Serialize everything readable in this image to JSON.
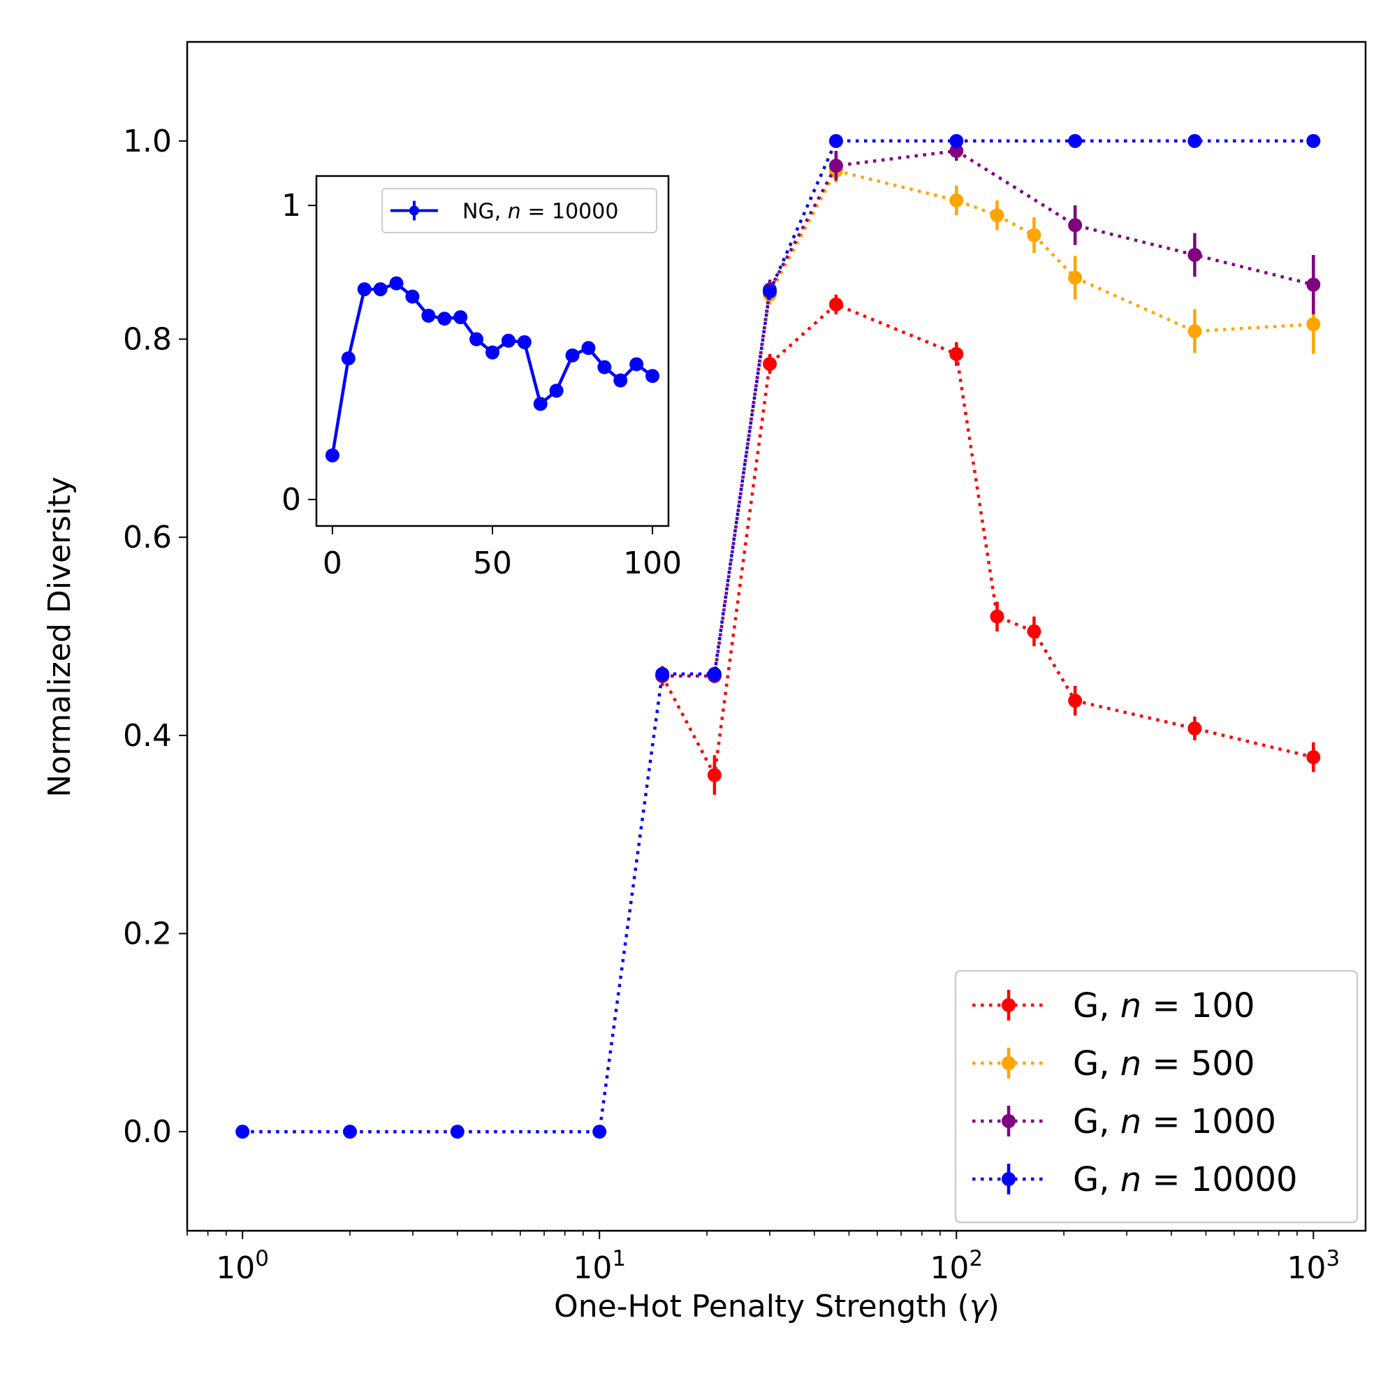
{
  "chart_data": [
    {
      "type": "line",
      "role": "main",
      "xscale": "log",
      "xlabel": "One-Hot Penalty Strength (γ)",
      "ylabel": "Normalized Diversity",
      "xlim": [
        0.7,
        1400
      ],
      "ylim": [
        -0.1,
        1.1
      ],
      "yticks": [
        0.0,
        0.2,
        0.4,
        0.6,
        0.8,
        1.0
      ],
      "ytick_labels": [
        "0.0",
        "0.2",
        "0.4",
        "0.6",
        "0.8",
        "1.0"
      ],
      "xticks": [
        1,
        10,
        100,
        1000
      ],
      "xtick_labels": [
        {
          "base": "10",
          "exp": "0"
        },
        {
          "base": "10",
          "exp": "1"
        },
        {
          "base": "10",
          "exp": "2"
        },
        {
          "base": "10",
          "exp": "3"
        }
      ],
      "legend_location": "lower-right",
      "series": [
        {
          "name": "G, n = 100",
          "legend_prefix": "G, ",
          "legend_var": "n",
          "legend_value": "= 100",
          "color": "#ff0000",
          "linestyle": "dotted",
          "x": [
            15,
            21,
            30,
            46,
            100,
            130,
            165,
            215,
            465,
            1000
          ],
          "y": [
            0.46,
            0.36,
            0.775,
            0.835,
            0.785,
            0.52,
            0.505,
            0.435,
            0.407,
            0.378
          ],
          "yerr": [
            0.01,
            0.02,
            0.01,
            0.01,
            0.012,
            0.015,
            0.015,
            0.015,
            0.012,
            0.015
          ]
        },
        {
          "name": "G, n = 500",
          "legend_prefix": "G, ",
          "legend_var": "n",
          "legend_value": "= 500",
          "color": "#ffa500",
          "linestyle": "dotted",
          "x": [
            15,
            21,
            30,
            46,
            100,
            130,
            165,
            215,
            465,
            1000
          ],
          "y": [
            0.46,
            0.46,
            0.845,
            0.97,
            0.94,
            0.925,
            0.905,
            0.862,
            0.808,
            0.815
          ],
          "yerr": [
            0.005,
            0.005,
            0.01,
            0.012,
            0.015,
            0.015,
            0.018,
            0.022,
            0.022,
            0.03
          ]
        },
        {
          "name": "G, n = 1000",
          "legend_prefix": "G, ",
          "legend_var": "n",
          "legend_value": "= 1000",
          "color": "#800080",
          "linestyle": "dotted",
          "x": [
            15,
            21,
            30,
            46,
            100,
            215,
            465,
            1000
          ],
          "y": [
            0.46,
            0.46,
            0.85,
            0.975,
            0.99,
            0.915,
            0.885,
            0.855
          ],
          "yerr": [
            0.005,
            0.005,
            0.01,
            0.015,
            0.01,
            0.02,
            0.022,
            0.03
          ]
        },
        {
          "name": "G, n = 10000",
          "legend_prefix": "G, ",
          "legend_var": "n",
          "legend_value": "= 10000",
          "color": "#0000ff",
          "linestyle": "dotted",
          "x": [
            1,
            2,
            4,
            10,
            15,
            21,
            30,
            46,
            100,
            215,
            465,
            1000
          ],
          "y": [
            0.0,
            0.0,
            0.0,
            0.0,
            0.462,
            0.462,
            0.848,
            1.0,
            1.0,
            1.0,
            1.0,
            1.0
          ],
          "yerr": [
            0,
            0,
            0,
            0,
            0.005,
            0.005,
            0.005,
            0.005,
            0.003,
            0.003,
            0.003,
            0.003
          ]
        }
      ]
    },
    {
      "type": "line",
      "role": "inset",
      "xlim": [
        -5,
        105
      ],
      "ylim": [
        -0.09,
        1.1
      ],
      "xticks": [
        0,
        50,
        100
      ],
      "xtick_labels": [
        "0",
        "50",
        "100"
      ],
      "yticks": [
        0,
        1
      ],
      "ytick_labels": [
        "0",
        "1"
      ],
      "legend_location": "top-right",
      "series": [
        {
          "name": "NG, n = 10000",
          "legend_prefix": "NG, ",
          "legend_var": "n",
          "legend_value": "= 10000",
          "color": "#0000ff",
          "linestyle": "solid",
          "x": [
            0,
            5,
            10,
            15,
            20,
            25,
            30,
            35,
            40,
            45,
            50,
            55,
            60,
            65,
            70,
            75,
            80,
            85,
            90,
            95,
            100
          ],
          "y": [
            0.15,
            0.48,
            0.715,
            0.715,
            0.735,
            0.69,
            0.625,
            0.615,
            0.62,
            0.545,
            0.5,
            0.54,
            0.535,
            0.325,
            0.37,
            0.49,
            0.515,
            0.45,
            0.405,
            0.46,
            0.42
          ]
        }
      ]
    }
  ]
}
